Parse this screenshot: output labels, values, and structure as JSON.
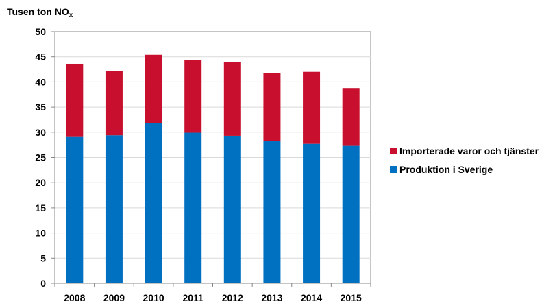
{
  "chart_data": {
    "type": "bar",
    "stacked": true,
    "ylabel": "Tusen ton NO",
    "ylabel_subscript": "x",
    "categories": [
      "2008",
      "2009",
      "2010",
      "2011",
      "2012",
      "2013",
      "2014",
      "2015"
    ],
    "ylim": [
      0,
      50
    ],
    "yticks": [
      "0",
      "5",
      "10",
      "15",
      "20",
      "25",
      "30",
      "35",
      "40",
      "45",
      "50"
    ],
    "grid": true,
    "legend_position": "right",
    "series": [
      {
        "name": "Produktion i Sverige",
        "color": "#0070C0",
        "values": [
          29.2,
          29.4,
          31.8,
          29.9,
          29.3,
          28.2,
          27.7,
          27.3
        ]
      },
      {
        "name": "Importerade varor och tjänster",
        "color": "#C8102E",
        "values": [
          14.4,
          12.7,
          13.6,
          14.5,
          14.7,
          13.5,
          14.3,
          11.5
        ]
      }
    ],
    "legend_order": [
      1,
      0
    ]
  }
}
